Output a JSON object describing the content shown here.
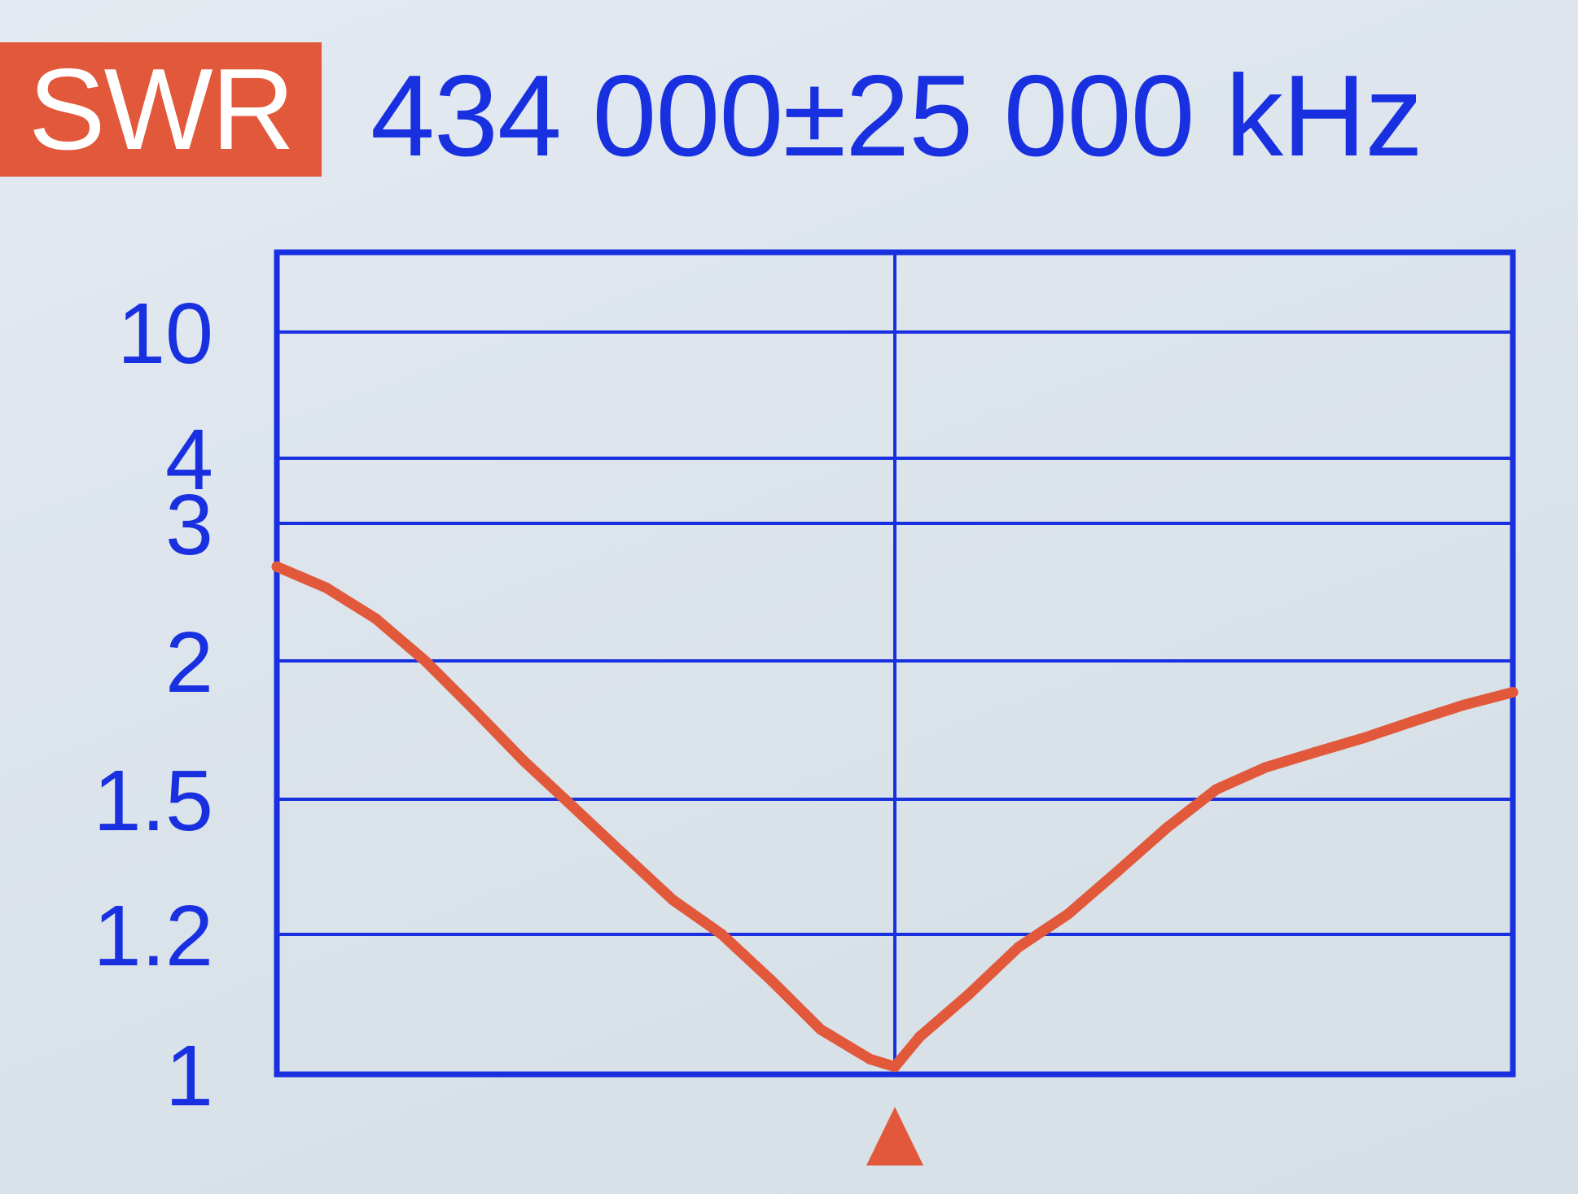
{
  "header": {
    "mode": "SWR",
    "frequency": "434 000±25 000 kHz"
  },
  "colors": {
    "background": "#dde4ec",
    "grid": "#1830e0",
    "trace": "#e2583a",
    "badge": "#e2583a",
    "text": "#1830e0"
  },
  "chart_data": {
    "type": "line",
    "title": "",
    "xlabel": "",
    "ylabel": "",
    "x_unit": "kHz",
    "xlim": [
      409000,
      459000
    ],
    "center_marker": 434000,
    "y_scale": "swr",
    "ylim": [
      1,
      10
    ],
    "y_ticks": [
      "10",
      "4",
      "3",
      "2",
      "1.5",
      "1.2",
      "1"
    ],
    "y_tick_values": [
      10,
      4,
      3,
      2,
      1.5,
      1.2,
      1
    ],
    "grid": true,
    "vertical_gridlines": [
      434000
    ],
    "series": [
      {
        "x": [
          409000,
          411000,
          413000,
          415000,
          417000,
          419000,
          421000,
          423000,
          425000,
          427000,
          429000,
          431000,
          433000,
          434000,
          435000,
          437000,
          439000,
          441000,
          443000,
          445000,
          447000,
          449000,
          451000,
          453000,
          455000,
          457000,
          459000
        ],
        "values": [
          2.62,
          2.46,
          2.25,
          2.0,
          1.8,
          1.62,
          1.48,
          1.37,
          1.27,
          1.2,
          1.13,
          1.06,
          1.02,
          1.01,
          1.05,
          1.11,
          1.18,
          1.24,
          1.33,
          1.43,
          1.53,
          1.6,
          1.65,
          1.7,
          1.76,
          1.82,
          1.87
        ]
      }
    ]
  }
}
